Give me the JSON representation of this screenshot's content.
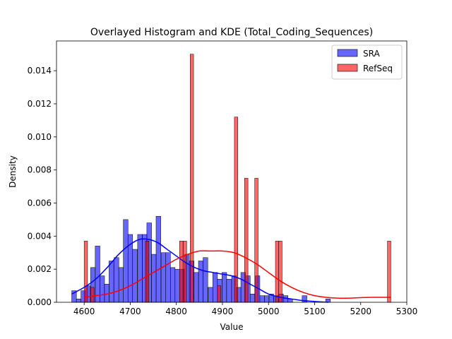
{
  "chart_data": {
    "type": "histogram",
    "title": "Overlayed Histogram and KDE (Total_Coding_Sequences)",
    "xlabel": "Value",
    "ylabel": "Density",
    "xlim": [
      4540,
      5300
    ],
    "ylim": [
      0,
      0.0158
    ],
    "xticks": [
      4600,
      4700,
      4800,
      4900,
      5000,
      5100,
      5200,
      5300
    ],
    "yticks": [
      0.0,
      0.002,
      0.004,
      0.006,
      0.008,
      0.01,
      0.012,
      0.014
    ],
    "ytick_labels": [
      "0.000",
      "0.002",
      "0.004",
      "0.006",
      "0.008",
      "0.010",
      "0.012",
      "0.014"
    ],
    "grid": false,
    "legend_position": "top-right",
    "series": [
      {
        "name": "SRA",
        "color": "#0000ff",
        "bin_width": 10.2,
        "bins": [
          [
            4573,
            0.0007
          ],
          [
            4583,
            0.0002
          ],
          [
            4593,
            0.0007
          ],
          [
            4603,
            0.001
          ],
          [
            4614,
            0.0021
          ],
          [
            4624,
            0.0034
          ],
          [
            4634,
            0.0016
          ],
          [
            4644,
            0.0011
          ],
          [
            4654,
            0.0025
          ],
          [
            4665,
            0.0027
          ],
          [
            4675,
            0.0021
          ],
          [
            4685,
            0.005
          ],
          [
            4695,
            0.0041
          ],
          [
            4705,
            0.0032
          ],
          [
            4716,
            0.0041
          ],
          [
            4726,
            0.0041
          ],
          [
            4736,
            0.0048
          ],
          [
            4746,
            0.0029
          ],
          [
            4756,
            0.0052
          ],
          [
            4767,
            0.003
          ],
          [
            4777,
            0.003
          ],
          [
            4787,
            0.0021
          ],
          [
            4797,
            0.002
          ],
          [
            4807,
            0.002
          ],
          [
            4818,
            0.0029
          ],
          [
            4828,
            0.0025
          ],
          [
            4838,
            0.0018
          ],
          [
            4848,
            0.0025
          ],
          [
            4858,
            0.0027
          ],
          [
            4869,
            0.0009
          ],
          [
            4879,
            0.0018
          ],
          [
            4889,
            0.0014
          ],
          [
            4899,
            0.0018
          ],
          [
            4909,
            0.0014
          ],
          [
            4920,
            0.0016
          ],
          [
            4930,
            0.0009
          ],
          [
            4940,
            0.0018
          ],
          [
            4950,
            0.0016
          ],
          [
            4960,
            0.0005
          ],
          [
            4971,
            0.0016
          ],
          [
            4981,
            0.0004
          ],
          [
            4991,
            0.0004
          ],
          [
            5001,
            0.0005
          ],
          [
            5011,
            0.0004
          ],
          [
            5022,
            0.0005
          ],
          [
            5032,
            0.0004
          ],
          [
            5042,
            0.0002
          ],
          [
            5073,
            0.0004
          ],
          [
            5124,
            0.0002
          ]
        ],
        "kde": {
          "x": [
            4573,
            4600,
            4625,
            4650,
            4675,
            4700,
            4720,
            4740,
            4760,
            4780,
            4800,
            4820,
            4840,
            4860,
            4880,
            4900,
            4920,
            4940,
            4960,
            4980,
            5000,
            5025,
            5050,
            5075,
            5100,
            5130
          ],
          "y": [
            0.0005,
            0.0009,
            0.0014,
            0.0021,
            0.0029,
            0.0035,
            0.0038,
            0.0038,
            0.0036,
            0.0032,
            0.0028,
            0.0024,
            0.0021,
            0.0019,
            0.0018,
            0.0017,
            0.0016,
            0.0014,
            0.0011,
            0.0008,
            0.0005,
            0.0003,
            0.0002,
            0.0001,
            5e-05,
            0.0
          ]
        }
      },
      {
        "name": "RefSeq",
        "color": "#ff0000",
        "bin_width": 7.4,
        "bins": [
          [
            4600,
            0.0037
          ],
          [
            4614,
            0.0009
          ],
          [
            4733,
            0.0037
          ],
          [
            4807,
            0.0037
          ],
          [
            4815,
            0.0037
          ],
          [
            4830,
            0.015
          ],
          [
            4889,
            0.001
          ],
          [
            4926,
            0.0112
          ],
          [
            4948,
            0.0075
          ],
          [
            4970,
            0.0075
          ],
          [
            5015,
            0.0037
          ],
          [
            5022,
            0.0037
          ],
          [
            5258,
            0.0037
          ]
        ],
        "kde": {
          "x": [
            4600,
            4625,
            4650,
            4675,
            4700,
            4725,
            4750,
            4775,
            4800,
            4825,
            4850,
            4875,
            4900,
            4925,
            4950,
            4975,
            5000,
            5025,
            5050,
            5075,
            5100,
            5125,
            5150,
            5175,
            5200,
            5225,
            5250,
            5265
          ],
          "y": [
            0.0003,
            0.0004,
            0.0005,
            0.0007,
            0.001,
            0.0014,
            0.0018,
            0.0022,
            0.0026,
            0.0029,
            0.0031,
            0.0031,
            0.0031,
            0.003,
            0.0027,
            0.0023,
            0.0018,
            0.0013,
            0.0009,
            0.0006,
            0.0004,
            0.0003,
            0.00025,
            0.00025,
            0.00028,
            0.0003,
            0.0003,
            0.0003
          ]
        }
      }
    ]
  }
}
